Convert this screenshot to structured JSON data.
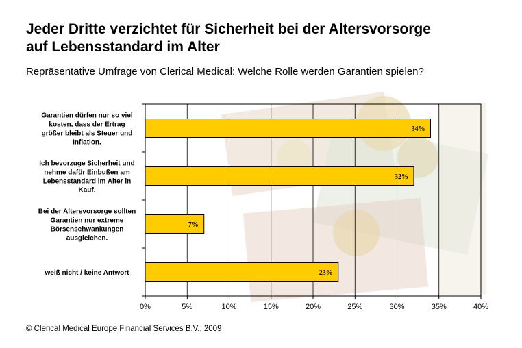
{
  "header": {
    "title_line1": "Jeder Dritte verzichtet für Sicherheit bei der Altersvorsorge",
    "title_line2": "auf Lebensstandard im Alter",
    "subtitle": "Repräsentative Umfrage von Clerical Medical: Welche Rolle werden Garantien spielen?"
  },
  "footer": {
    "copyright": "© Clerical Medical Europe Financial Services B.V., 2009"
  },
  "colors": {
    "bar_fill": "#FFCC00",
    "bar_stroke": "#000000",
    "grid": "#000000",
    "background_image_tint": "#e9dcc8"
  },
  "chart_data": {
    "type": "bar",
    "orientation": "horizontal",
    "categories": [
      [
        "Garantien dürfen nur so viel",
        "kosten, dass der Ertrag",
        "größer bleibt als Steuer und",
        "Inflation."
      ],
      [
        "Ich bevorzuge Sicherheit und",
        "nehme dafür Einbußen am",
        "Lebensstandard im Alter in",
        "Kauf."
      ],
      [
        "Bei der Altersvorsorge sollten",
        "Garantien nur extreme",
        "Börsenschwankungen",
        "ausgleichen."
      ],
      [
        "weiß nicht / keine Antwort"
      ]
    ],
    "values": [
      34,
      32,
      7,
      23
    ],
    "data_labels": [
      "34%",
      "32%",
      "7%",
      "23%"
    ],
    "xlim": [
      0,
      40
    ],
    "xticks": [
      "0%",
      "5%",
      "10%",
      "15%",
      "20%",
      "25%",
      "30%",
      "35%",
      "40%"
    ],
    "grid": true,
    "legend": "none"
  }
}
